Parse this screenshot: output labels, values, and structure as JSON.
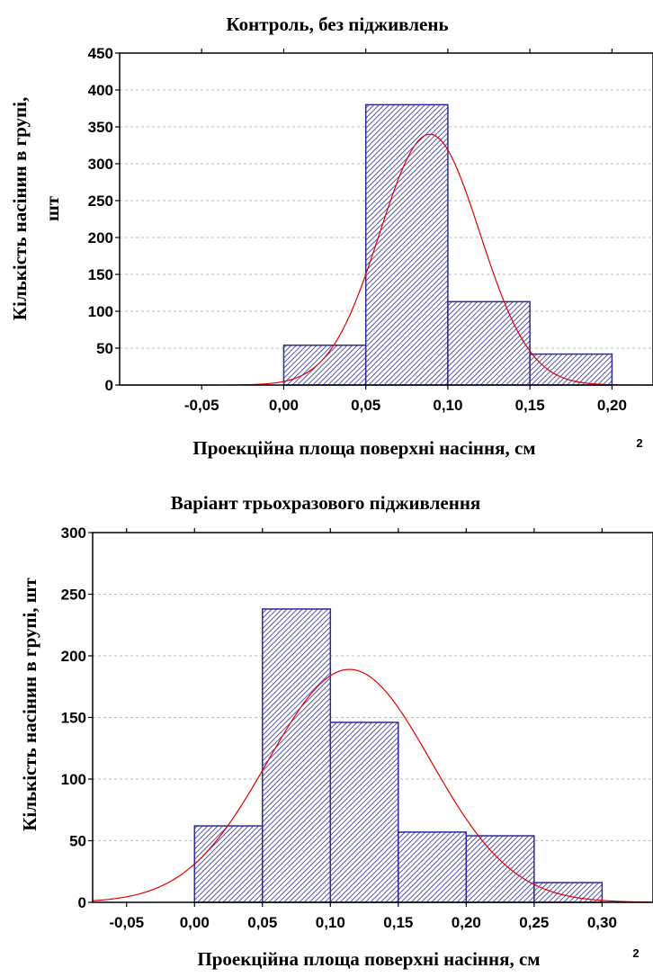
{
  "chart_data": [
    {
      "type": "bar",
      "title": "Контроль, без підживлень",
      "xlabel": "Проекційна площа поверхні насіння, см",
      "xlabel_sup": "2",
      "ylabel_lines": [
        "Кількість насінин в групі,",
        "шт"
      ],
      "ylim": [
        0,
        450
      ],
      "yticks": [
        0,
        50,
        100,
        150,
        200,
        250,
        300,
        350,
        400,
        450
      ],
      "xlim": [
        -0.1,
        0.225
      ],
      "xticks": [
        -0.05,
        0.0,
        0.05,
        0.1,
        0.15,
        0.2
      ],
      "xtick_labels": [
        "-0,05",
        "0,00",
        "0,05",
        "0,10",
        "0,15",
        "0,20"
      ],
      "bins": [
        {
          "from": 0.0,
          "to": 0.05,
          "value": 54
        },
        {
          "from": 0.05,
          "to": 0.1,
          "value": 380
        },
        {
          "from": 0.1,
          "to": 0.15,
          "value": 113
        },
        {
          "from": 0.15,
          "to": 0.2,
          "value": 42
        }
      ],
      "normal_curve": {
        "mean": 0.089,
        "sd": 0.0305,
        "peak": 340
      },
      "grid": true,
      "colors": {
        "bar_stroke": "#2b2b9a",
        "curve": "#e00000"
      }
    },
    {
      "type": "bar",
      "title": "Варіант трьохразового підживлення",
      "xlabel": "Проекційна площа поверхні насіння, см",
      "xlabel_sup": "2",
      "ylabel_lines": [
        "Кількість насінин в групі, шт"
      ],
      "ylim": [
        0,
        300
      ],
      "yticks": [
        0,
        50,
        100,
        150,
        200,
        250,
        300
      ],
      "xlim": [
        -0.075,
        0.3375
      ],
      "xticks": [
        -0.05,
        0.0,
        0.05,
        0.1,
        0.15,
        0.2,
        0.25,
        0.3
      ],
      "xtick_labels": [
        "-0,05",
        "0,00",
        "0,05",
        "0,10",
        "0,15",
        "0,20",
        "0,25",
        "0,30"
      ],
      "bins": [
        {
          "from": 0.0,
          "to": 0.05,
          "value": 62
        },
        {
          "from": 0.05,
          "to": 0.1,
          "value": 238
        },
        {
          "from": 0.1,
          "to": 0.15,
          "value": 146
        },
        {
          "from": 0.15,
          "to": 0.2,
          "value": 57
        },
        {
          "from": 0.2,
          "to": 0.25,
          "value": 54
        },
        {
          "from": 0.25,
          "to": 0.3,
          "value": 16
        }
      ],
      "normal_curve": {
        "mean": 0.114,
        "sd": 0.06,
        "peak": 189
      },
      "grid": true,
      "colors": {
        "bar_stroke": "#2b2b9a",
        "curve": "#e00000"
      }
    }
  ]
}
